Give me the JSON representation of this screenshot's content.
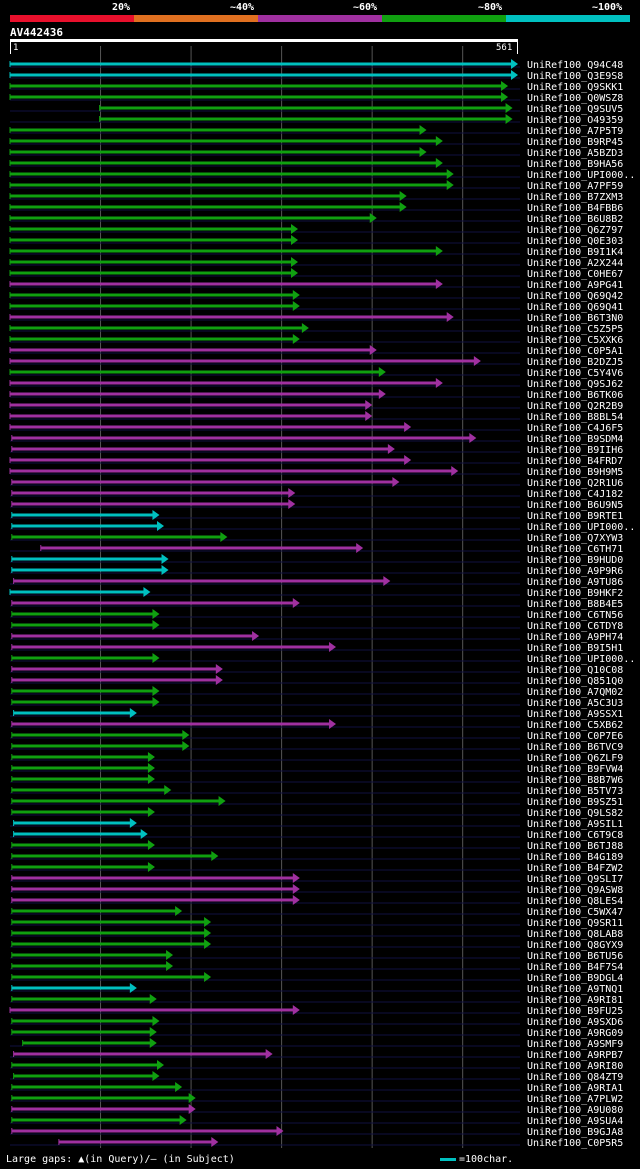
{
  "scale": {
    "labels": [
      "20%",
      "~40%",
      "~60%",
      "~80%",
      "~100%"
    ],
    "colors": [
      "#e8102c",
      "#e07020",
      "#a030a0",
      "#10a010",
      "#00c0c0"
    ]
  },
  "query": {
    "name": "AV442436",
    "start": "1",
    "end": "561"
  },
  "colors": {
    "cyan": "#00c0c0",
    "green": "#10a010",
    "purple": "#a030a0",
    "grid": "#555555",
    "dash": "#000000"
  },
  "hits": [
    {
      "name": "UniRef100_Q94C48",
      "c": "c",
      "s": 1,
      "e": 561
    },
    {
      "name": "UniRef100_Q3E9S8",
      "c": "c",
      "s": 1,
      "e": 561
    },
    {
      "name": "UniRef100_Q9SKK1",
      "c": "g",
      "s": 1,
      "e": 550
    },
    {
      "name": "UniRef100_Q0WSZ8",
      "c": "g",
      "s": 1,
      "e": 550
    },
    {
      "name": "UniRef100_Q9SUV5",
      "c": "g",
      "s": 100,
      "e": 555
    },
    {
      "name": "UniRef100_O49359",
      "c": "g",
      "s": 100,
      "e": 555
    },
    {
      "name": "UniRef100_A7P5T9",
      "c": "g",
      "s": 1,
      "e": 460
    },
    {
      "name": "UniRef100_B9RP45",
      "c": "g",
      "s": 1,
      "e": 478
    },
    {
      "name": "UniRef100_A5BZD3",
      "c": "g",
      "s": 1,
      "e": 460
    },
    {
      "name": "UniRef100_B9HA56",
      "c": "g",
      "s": 1,
      "e": 478
    },
    {
      "name": "UniRef100_UPI000..",
      "c": "g",
      "s": 1,
      "e": 490
    },
    {
      "name": "UniRef100_A7PF59",
      "c": "g",
      "s": 1,
      "e": 490
    },
    {
      "name": "UniRef100_B7ZXM3",
      "c": "g",
      "s": 1,
      "e": 438
    },
    {
      "name": "UniRef100_B4FBB6",
      "c": "g",
      "s": 1,
      "e": 438
    },
    {
      "name": "UniRef100_B6U8B2",
      "c": "g",
      "s": 1,
      "e": 405
    },
    {
      "name": "UniRef100_Q6Z797",
      "c": "g",
      "s": 1,
      "e": 318
    },
    {
      "name": "UniRef100_Q0E303",
      "c": "g",
      "s": 1,
      "e": 318
    },
    {
      "name": "UniRef100_B9I1K4",
      "c": "g",
      "s": 1,
      "e": 478
    },
    {
      "name": "UniRef100_A2X244",
      "c": "g",
      "s": 1,
      "e": 318
    },
    {
      "name": "UniRef100_C0HE67",
      "c": "g",
      "s": 1,
      "e": 318
    },
    {
      "name": "UniRef100_A9PG41",
      "c": "p",
      "s": 1,
      "e": 478
    },
    {
      "name": "UniRef100_Q69Q42",
      "c": "g",
      "s": 1,
      "e": 320
    },
    {
      "name": "UniRef100_Q69Q41",
      "c": "g",
      "s": 1,
      "e": 320
    },
    {
      "name": "UniRef100_B6T3N0",
      "c": "p",
      "s": 1,
      "e": 490
    },
    {
      "name": "UniRef100_C5Z5P5",
      "c": "g",
      "s": 1,
      "e": 330
    },
    {
      "name": "UniRef100_C5XXK6",
      "c": "g",
      "s": 1,
      "e": 320
    },
    {
      "name": "UniRef100_C0P5A1",
      "c": "p",
      "s": 1,
      "e": 405
    },
    {
      "name": "UniRef100_B2DZJ5",
      "c": "p",
      "s": 1,
      "e": 520
    },
    {
      "name": "UniRef100_C5Y4V6",
      "c": "g",
      "s": 1,
      "e": 415
    },
    {
      "name": "UniRef100_Q9SJ62",
      "c": "p",
      "s": 1,
      "e": 478
    },
    {
      "name": "UniRef100_B6TK06",
      "c": "p",
      "s": 1,
      "e": 415
    },
    {
      "name": "UniRef100_Q2R2B9",
      "c": "p",
      "s": 1,
      "e": 400
    },
    {
      "name": "UniRef100_B8BL54",
      "c": "p",
      "s": 1,
      "e": 400
    },
    {
      "name": "UniRef100_C4J6F5",
      "c": "p",
      "s": 1,
      "e": 443
    },
    {
      "name": "UniRef100_B9SDM4",
      "c": "p",
      "s": 3,
      "e": 515
    },
    {
      "name": "UniRef100_B9IIH6",
      "c": "p",
      "s": 3,
      "e": 425
    },
    {
      "name": "UniRef100_B4FRD7",
      "c": "p",
      "s": 1,
      "e": 443
    },
    {
      "name": "UniRef100_B9H9M5",
      "c": "p",
      "s": 1,
      "e": 495
    },
    {
      "name": "UniRef100_Q2R1U6",
      "c": "p",
      "s": 3,
      "e": 430
    },
    {
      "name": "UniRef100_C4J182",
      "c": "p",
      "s": 3,
      "e": 315
    },
    {
      "name": "UniRef100_B6U9N5",
      "c": "p",
      "s": 3,
      "e": 315
    },
    {
      "name": "UniRef100_B9RTE1",
      "c": "c",
      "s": 3,
      "e": 165
    },
    {
      "name": "UniRef100_UPI000..",
      "c": "c",
      "s": 3,
      "e": 170
    },
    {
      "name": "UniRef100_Q7XYW3",
      "c": "g",
      "s": 3,
      "e": 240
    },
    {
      "name": "UniRef100_C6TH71",
      "c": "p",
      "s": 35,
      "e": 390
    },
    {
      "name": "UniRef100_B9HUD0",
      "c": "c",
      "s": 3,
      "e": 175
    },
    {
      "name": "UniRef100_A9P9R6",
      "c": "c",
      "s": 3,
      "e": 175
    },
    {
      "name": "UniRef100_A9TU86",
      "c": "p",
      "s": 5,
      "e": 420
    },
    {
      "name": "UniRef100_B9HKF2",
      "c": "c",
      "s": 1,
      "e": 155
    },
    {
      "name": "UniRef100_B8B4E5",
      "c": "p",
      "s": 3,
      "e": 320
    },
    {
      "name": "UniRef100_C6TN56",
      "c": "g",
      "s": 3,
      "e": 165
    },
    {
      "name": "UniRef100_C6TDY8",
      "c": "g",
      "s": 3,
      "e": 165
    },
    {
      "name": "UniRef100_A9PH74",
      "c": "p",
      "s": 3,
      "e": 275
    },
    {
      "name": "UniRef100_B9I5H1",
      "c": "p",
      "s": 3,
      "e": 360
    },
    {
      "name": "UniRef100_UPI000..",
      "c": "g",
      "s": 3,
      "e": 165
    },
    {
      "name": "UniRef100_Q10C08",
      "c": "p",
      "s": 3,
      "e": 235
    },
    {
      "name": "UniRef100_Q851Q0",
      "c": "p",
      "s": 3,
      "e": 235
    },
    {
      "name": "UniRef100_A7QM02",
      "c": "g",
      "s": 3,
      "e": 165
    },
    {
      "name": "UniRef100_A5C3U3",
      "c": "g",
      "s": 3,
      "e": 165
    },
    {
      "name": "UniRef100_A9SSX1",
      "c": "c",
      "s": 5,
      "e": 140
    },
    {
      "name": "UniRef100_C5XB62",
      "c": "p",
      "s": 3,
      "e": 360
    },
    {
      "name": "UniRef100_C0P7E6",
      "c": "g",
      "s": 3,
      "e": 198
    },
    {
      "name": "UniRef100_B6TVC9",
      "c": "g",
      "s": 3,
      "e": 198
    },
    {
      "name": "UniRef100_Q6ZLF9",
      "c": "g",
      "s": 3,
      "e": 160
    },
    {
      "name": "UniRef100_B9FVW4",
      "c": "g",
      "s": 3,
      "e": 160
    },
    {
      "name": "UniRef100_B8B7W6",
      "c": "g",
      "s": 3,
      "e": 160
    },
    {
      "name": "UniRef100_B5TV73",
      "c": "g",
      "s": 3,
      "e": 178
    },
    {
      "name": "UniRef100_B9SZ51",
      "c": "g",
      "s": 3,
      "e": 238
    },
    {
      "name": "UniRef100_Q9LS82",
      "c": "g",
      "s": 3,
      "e": 160
    },
    {
      "name": "UniRef100_A9SIL1",
      "c": "c",
      "s": 5,
      "e": 140
    },
    {
      "name": "UniRef100_C6T9C8",
      "c": "c",
      "s": 5,
      "e": 152
    },
    {
      "name": "UniRef100_B6TJ88",
      "c": "g",
      "s": 3,
      "e": 160
    },
    {
      "name": "UniRef100_B4G189",
      "c": "g",
      "s": 3,
      "e": 230
    },
    {
      "name": "UniRef100_B4FZW2",
      "c": "g",
      "s": 3,
      "e": 160
    },
    {
      "name": "UniRef100_Q9SLI7",
      "c": "p",
      "s": 3,
      "e": 320
    },
    {
      "name": "UniRef100_Q9ASW8",
      "c": "p",
      "s": 3,
      "e": 320
    },
    {
      "name": "UniRef100_Q8LES4",
      "c": "p",
      "s": 3,
      "e": 320
    },
    {
      "name": "UniRef100_C5WX47",
      "c": "g",
      "s": 3,
      "e": 190
    },
    {
      "name": "UniRef100_Q9SR11",
      "c": "g",
      "s": 3,
      "e": 222
    },
    {
      "name": "UniRef100_Q8LAB8",
      "c": "g",
      "s": 3,
      "e": 222
    },
    {
      "name": "UniRef100_Q8GYX9",
      "c": "g",
      "s": 3,
      "e": 222
    },
    {
      "name": "UniRef100_B6TU56",
      "c": "g",
      "s": 3,
      "e": 180
    },
    {
      "name": "UniRef100_B4F7S4",
      "c": "g",
      "s": 3,
      "e": 180
    },
    {
      "name": "UniRef100_B9DGL4",
      "c": "g",
      "s": 3,
      "e": 222
    },
    {
      "name": "UniRef100_A9TNQ1",
      "c": "c",
      "s": 3,
      "e": 140
    },
    {
      "name": "UniRef100_A9RI81",
      "c": "g",
      "s": 3,
      "e": 162
    },
    {
      "name": "UniRef100_B9FU25",
      "c": "p",
      "s": 1,
      "e": 320
    },
    {
      "name": "UniRef100_A9SXD6",
      "c": "g",
      "s": 3,
      "e": 165
    },
    {
      "name": "UniRef100_A9RG09",
      "c": "g",
      "s": 3,
      "e": 162
    },
    {
      "name": "UniRef100_A9SMF9",
      "c": "g",
      "s": 15,
      "e": 162
    },
    {
      "name": "UniRef100_A9RPB7",
      "c": "p",
      "s": 5,
      "e": 290
    },
    {
      "name": "UniRef100_A9RI80",
      "c": "g",
      "s": 3,
      "e": 170
    },
    {
      "name": "UniRef100_Q84ZT9",
      "c": "g",
      "s": 5,
      "e": 165
    },
    {
      "name": "UniRef100_A9RIA1",
      "c": "g",
      "s": 3,
      "e": 190
    },
    {
      "name": "UniRef100_A7PLW2",
      "c": "g",
      "s": 3,
      "e": 205
    },
    {
      "name": "UniRef100_A9U080",
      "c": "p",
      "s": 3,
      "e": 205
    },
    {
      "name": "UniRef100_A9SUA4",
      "c": "g",
      "s": 3,
      "e": 195
    },
    {
      "name": "UniRef100_B9GJA8",
      "c": "p",
      "s": 3,
      "e": 302
    },
    {
      "name": "UniRef100_C0P5R5",
      "c": "p",
      "s": 55,
      "e": 230
    }
  ],
  "footer": "Large gaps: ▲(in Query)/— (in Subject)",
  "legend": "=100char."
}
